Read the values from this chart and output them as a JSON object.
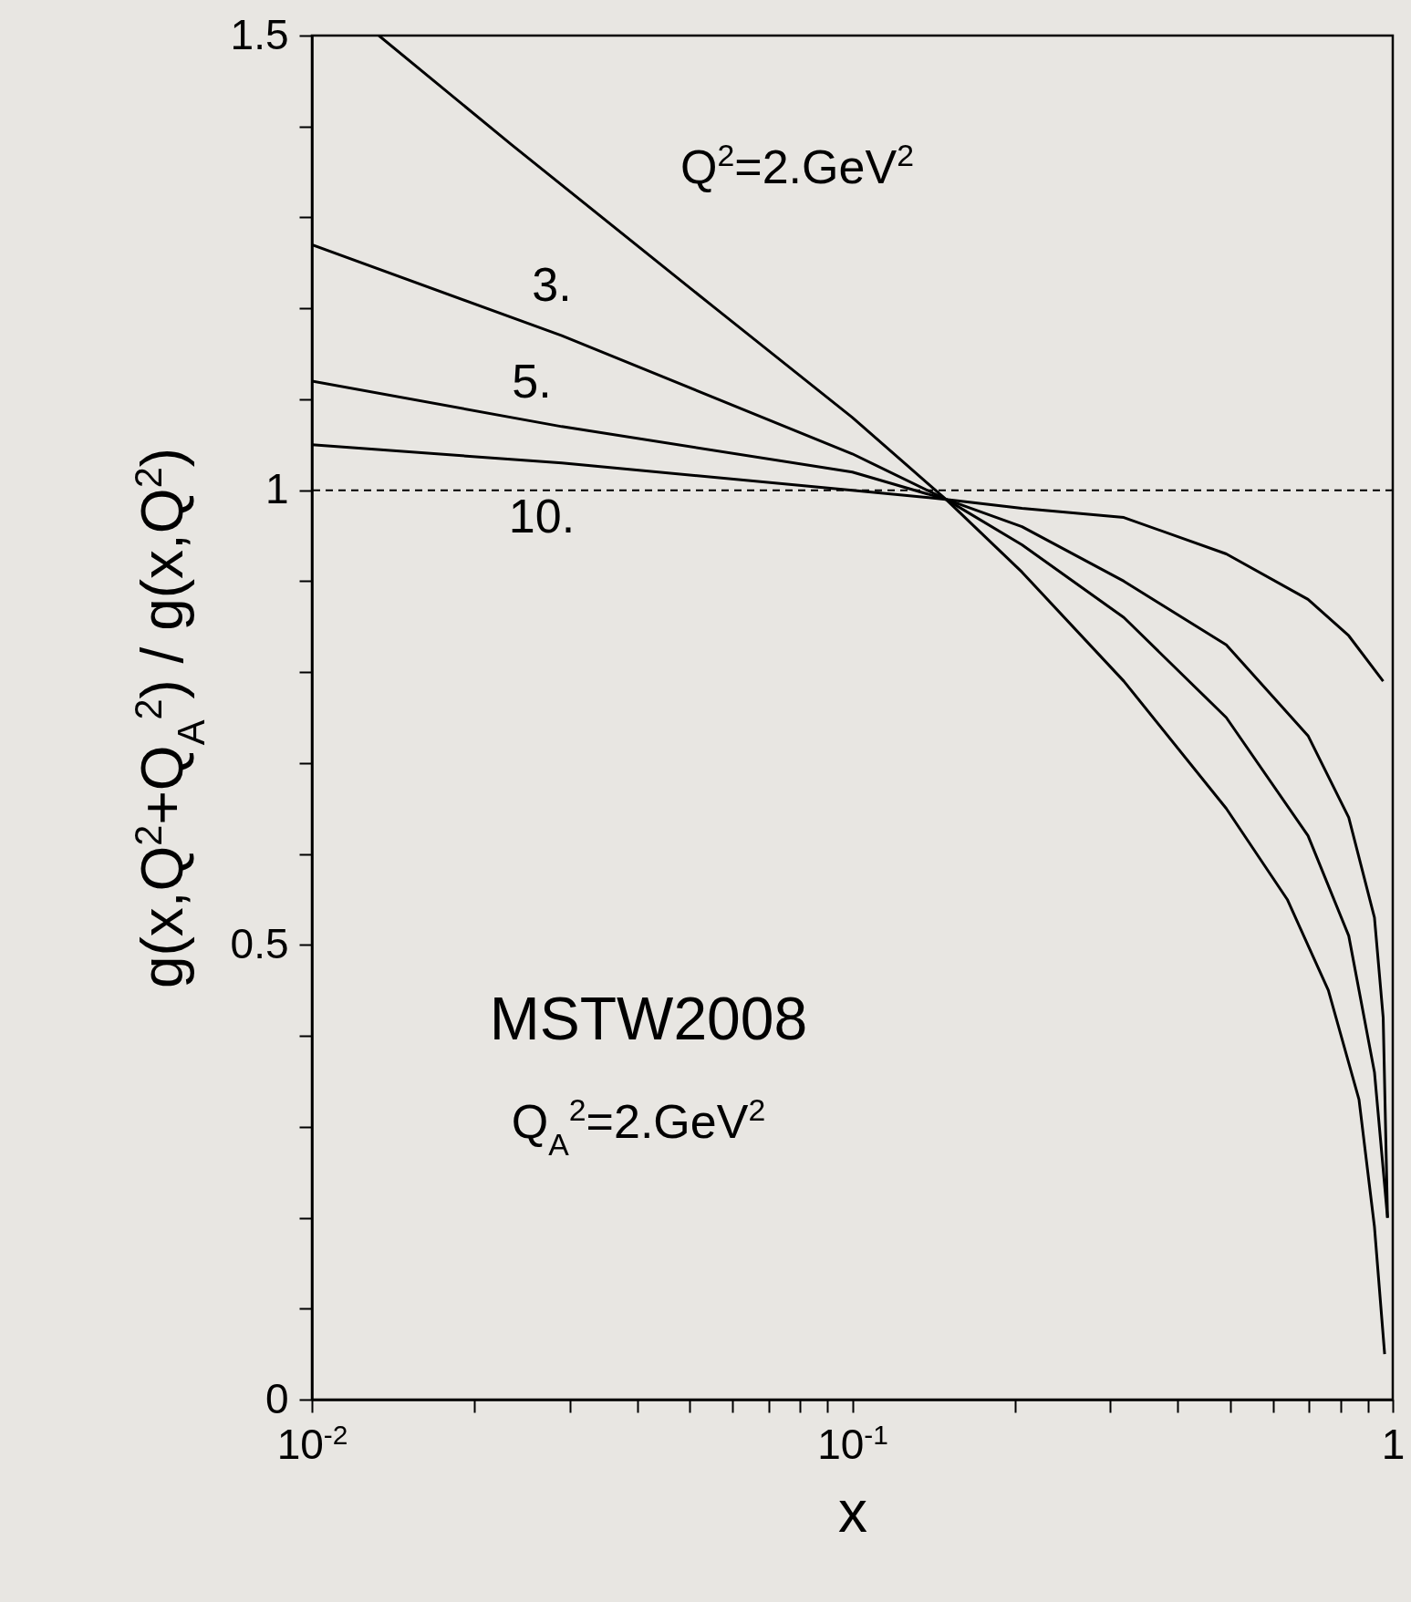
{
  "chart_data": {
    "type": "line",
    "xlabel": "x",
    "ylabel": "g(x,Q$^{2}$+Q$_{A}$$^{2}$) / g(x,Q$^{2}$)",
    "log": "x",
    "xlim": [
      0.01,
      1
    ],
    "ylim": [
      0,
      1.5
    ],
    "xticks": [
      {
        "value": 0.01,
        "label": "10$^{-2}$"
      },
      {
        "value": 0.02,
        "label": null
      },
      {
        "value": 0.03,
        "label": null
      },
      {
        "value": 0.04,
        "label": null
      },
      {
        "value": 0.05,
        "label": null
      },
      {
        "value": 0.06,
        "label": null
      },
      {
        "value": 0.07,
        "label": null
      },
      {
        "value": 0.08,
        "label": null
      },
      {
        "value": 0.09,
        "label": null
      },
      {
        "value": 0.1,
        "label": "10$^{-1}$"
      },
      {
        "value": 0.2,
        "label": null
      },
      {
        "value": 0.3,
        "label": null
      },
      {
        "value": 0.4,
        "label": null
      },
      {
        "value": 0.5,
        "label": null
      },
      {
        "value": 0.6,
        "label": null
      },
      {
        "value": 0.7,
        "label": null
      },
      {
        "value": 0.8,
        "label": null
      },
      {
        "value": 0.9,
        "label": null
      },
      1
    ],
    "yticks": [
      0,
      {
        "value": 0.1,
        "label": null
      },
      {
        "value": 0.2,
        "label": null
      },
      {
        "value": 0.3,
        "label": null
      },
      {
        "value": 0.4,
        "label": null
      },
      0.5,
      {
        "value": 0.6,
        "label": null
      },
      {
        "value": 0.7,
        "label": null
      },
      {
        "value": 0.8,
        "label": null
      },
      {
        "value": 0.9,
        "label": null
      },
      1,
      {
        "value": 1.1,
        "label": null
      },
      {
        "value": 1.2,
        "label": null
      },
      {
        "value": 1.3,
        "label": null
      },
      {
        "value": 1.4,
        "label": null
      },
      1.5
    ],
    "series": [
      {
        "color": "#000000",
        "x": [
          0.0133,
          0.0234,
          0.0558,
          0.1,
          0.149,
          0.206,
          0.318,
          0.492,
          0.638,
          0.76,
          0.866,
          0.925,
          0.966
        ],
        "values": [
          1.5,
          1.38,
          1.2,
          1.08,
          0.99,
          0.91,
          0.79,
          0.65,
          0.55,
          0.45,
          0.33,
          0.19,
          0.05
        ]
      },
      {
        "color": "#000000",
        "x": [
          0.01,
          0.029,
          0.1,
          0.149,
          0.206,
          0.318,
          0.492,
          0.697,
          0.829,
          0.925,
          0.978
        ],
        "values": [
          1.27,
          1.17,
          1.04,
          0.99,
          0.94,
          0.86,
          0.75,
          0.62,
          0.51,
          0.36,
          0.2
        ]
      },
      {
        "color": "#000000",
        "x": [
          0.01,
          0.029,
          0.1,
          0.149,
          0.206,
          0.318,
          0.492,
          0.697,
          0.829,
          0.925,
          0.96,
          0.978
        ],
        "values": [
          1.12,
          1.07,
          1.02,
          0.99,
          0.96,
          0.9,
          0.83,
          0.73,
          0.64,
          0.53,
          0.42,
          0.2
        ]
      },
      {
        "color": "#000000",
        "x": [
          0.01,
          0.029,
          0.1,
          0.149,
          0.206,
          0.318,
          0.492,
          0.697,
          0.829,
          0.96
        ],
        "values": [
          1.05,
          1.03,
          1.0,
          0.99,
          0.98,
          0.97,
          0.93,
          0.88,
          0.84,
          0.79
        ]
      }
    ],
    "ref_lines": [
      {
        "axis": "y",
        "value": 1,
        "line_style": "dashed",
        "color": "#000000"
      }
    ],
    "annotations": [
      "Q$^{2}$=2.GeV$^{2}$",
      "3.",
      "5.",
      "10.",
      "MSTW2008",
      "Q$_{A}$$^{2}$=2.GeV$^{2}$"
    ]
  }
}
